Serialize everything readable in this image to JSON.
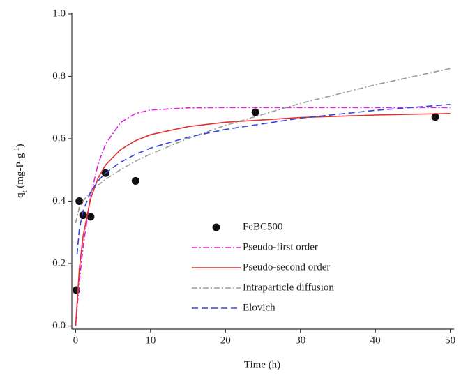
{
  "chart_data": {
    "type": "scatter_line",
    "x_label": "Time (h)",
    "y_label_parts": [
      "q",
      "t",
      " (mg-P·g",
      "-1",
      ")"
    ],
    "xlim": [
      -0.5,
      50.5
    ],
    "ylim": [
      -0.01,
      1.0
    ],
    "xticks": [
      0,
      10,
      20,
      30,
      40,
      50
    ],
    "yticks": [
      {
        "value": 0,
        "label": "0.0"
      },
      0.2,
      0.4,
      0.6,
      0.8,
      {
        "value": 1,
        "label": "1.0"
      }
    ],
    "series": [
      {
        "name": "FeBC500",
        "kind": "points",
        "color": "#111111",
        "x": [
          0.1,
          0.5,
          1,
          2,
          4,
          8,
          24,
          48
        ],
        "values": [
          0.115,
          0.4,
          0.355,
          0.35,
          0.49,
          0.465,
          0.685,
          0.67
        ]
      },
      {
        "name": "Pseudo-first order",
        "kind": "line",
        "color": "#e020e0",
        "dash": "8 3 2 3",
        "x": [
          0,
          0.5,
          1,
          2,
          3,
          4,
          6,
          8,
          10,
          15,
          20,
          30,
          40,
          50
        ],
        "values": [
          0,
          0.141,
          0.254,
          0.417,
          0.519,
          0.583,
          0.652,
          0.681,
          0.692,
          0.699,
          0.7,
          0.7,
          0.7,
          0.7
        ]
      },
      {
        "name": "Pseudo-second order",
        "kind": "line",
        "color": "#e03030",
        "dash": "",
        "x": [
          0,
          0.5,
          1,
          2,
          3,
          4,
          6,
          8,
          10,
          15,
          20,
          30,
          40,
          50
        ],
        "values": [
          0,
          0.181,
          0.288,
          0.408,
          0.474,
          0.516,
          0.565,
          0.594,
          0.613,
          0.639,
          0.653,
          0.668,
          0.676,
          0.681
        ]
      },
      {
        "name": "Intraparticle diffusion",
        "kind": "line",
        "color": "#999999",
        "dash": "8 3 2 3",
        "x": [
          0,
          0.5,
          1,
          2,
          3,
          4,
          6,
          8,
          10,
          15,
          20,
          30,
          40,
          50
        ],
        "values": [
          0.33,
          0.379,
          0.4,
          0.429,
          0.451,
          0.47,
          0.501,
          0.528,
          0.551,
          0.601,
          0.643,
          0.713,
          0.773,
          0.825
        ]
      },
      {
        "name": "Elovich",
        "kind": "line",
        "color": "#3344dd",
        "dash": "9 5",
        "x": [
          0.2,
          0.5,
          1,
          2,
          3,
          4,
          6,
          8,
          10,
          15,
          20,
          30,
          40,
          50
        ],
        "values": [
          0.229,
          0.309,
          0.369,
          0.429,
          0.465,
          0.49,
          0.525,
          0.55,
          0.57,
          0.605,
          0.63,
          0.666,
          0.691,
          0.71
        ]
      }
    ]
  }
}
